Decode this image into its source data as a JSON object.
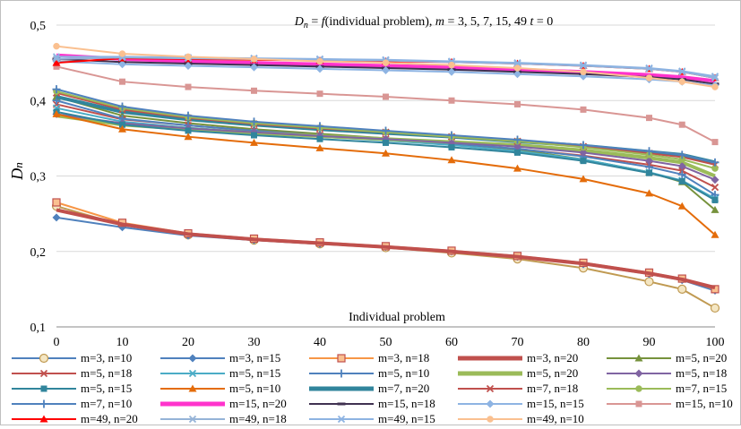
{
  "chart_data": {
    "type": "line",
    "title": "Dn = f(individual problem), m = 3, 5, 7, 15, 49 t = 0",
    "title_parts": {
      "d": "D",
      "d_sub": "n",
      "eq": " = ",
      "f": "f",
      "paren": "(individual problem), ",
      "m": "m",
      "rest": " = 3,  5, 7,  15, 49 ",
      "t": "t",
      "t_rest": " = 0"
    },
    "xlabel": "Individual problem",
    "ylabel": "Dn",
    "ylabel_parts": {
      "main": "D",
      "sub": "n"
    },
    "xlim": [
      0,
      100
    ],
    "ylim": [
      0.1,
      0.5
    ],
    "x_ticks": [
      "0",
      "10",
      "20",
      "30",
      "40",
      "50",
      "60",
      "70",
      "80",
      "90",
      "100"
    ],
    "y_ticks": [
      "0,1",
      "0,2",
      "0,3",
      "0,4",
      "0,5"
    ],
    "grid": "horizontal",
    "legend_position": "bottom",
    "x": [
      0,
      10,
      20,
      30,
      40,
      50,
      60,
      70,
      80,
      90,
      95,
      100
    ],
    "series": [
      {
        "name": "m=3, n=10",
        "color": "#c09a52",
        "marker": "circle-open",
        "values": [
          0.26,
          0.235,
          0.222,
          0.215,
          0.21,
          0.205,
          0.198,
          0.19,
          0.178,
          0.16,
          0.15,
          0.125
        ]
      },
      {
        "name": "m=3, n=15",
        "color": "#4f81bd",
        "marker": "diamond",
        "values": [
          0.245,
          0.232,
          0.221,
          0.215,
          0.21,
          0.206,
          0.2,
          0.193,
          0.183,
          0.17,
          0.162,
          0.148
        ]
      },
      {
        "name": "m=3, n=18",
        "color": "#f79646",
        "marker": "square-open",
        "values": [
          0.265,
          0.238,
          0.224,
          0.217,
          0.212,
          0.207,
          0.201,
          0.194,
          0.185,
          0.172,
          0.164,
          0.15
        ]
      },
      {
        "name": "m=3, n=20",
        "color": "#c0504d",
        "marker": "none",
        "values": [
          0.255,
          0.236,
          0.223,
          0.216,
          0.211,
          0.206,
          0.2,
          0.193,
          0.184,
          0.171,
          0.163,
          0.152
        ]
      },
      {
        "name": "m=5, n=20",
        "color": "#76923c",
        "marker": "triangle",
        "values": [
          0.405,
          0.38,
          0.37,
          0.362,
          0.356,
          0.35,
          0.343,
          0.335,
          0.322,
          0.305,
          0.292,
          0.255
        ]
      },
      {
        "name": "m=5, n=18",
        "color": "#c0504d",
        "marker": "x",
        "values": [
          0.395,
          0.375,
          0.367,
          0.36,
          0.354,
          0.349,
          0.343,
          0.336,
          0.327,
          0.315,
          0.307,
          0.285
        ]
      },
      {
        "name": "m=5, n=15",
        "color": "#4bacc6",
        "marker": "x",
        "values": [
          0.39,
          0.372,
          0.364,
          0.358,
          0.352,
          0.347,
          0.341,
          0.333,
          0.322,
          0.305,
          0.294,
          0.27
        ]
      },
      {
        "name": "m=5, n=10",
        "color": "#4f81bd",
        "marker": "plus",
        "values": [
          0.4,
          0.376,
          0.367,
          0.36,
          0.354,
          0.349,
          0.343,
          0.336,
          0.326,
          0.312,
          0.302,
          0.275
        ]
      },
      {
        "name": "m=5, n=20",
        "color": "#9bbb59",
        "marker": "none",
        "values": [
          0.38,
          0.368,
          0.362,
          0.357,
          0.353,
          0.349,
          0.345,
          0.341,
          0.334,
          0.324,
          0.318,
          0.3
        ]
      },
      {
        "name": "m=5, n=18",
        "color": "#8064a2",
        "marker": "diamond",
        "values": [
          0.382,
          0.37,
          0.363,
          0.358,
          0.353,
          0.349,
          0.344,
          0.339,
          0.331,
          0.32,
          0.313,
          0.295
        ]
      },
      {
        "name": "m=5, n=15",
        "color": "#31859c",
        "marker": "square",
        "values": [
          0.385,
          0.368,
          0.36,
          0.354,
          0.349,
          0.344,
          0.338,
          0.331,
          0.32,
          0.304,
          0.293,
          0.268
        ]
      },
      {
        "name": "m=5, n=10",
        "color": "#e46c0a",
        "marker": "triangle",
        "values": [
          0.382,
          0.362,
          0.352,
          0.344,
          0.337,
          0.33,
          0.321,
          0.31,
          0.296,
          0.277,
          0.26,
          0.222
        ]
      },
      {
        "name": "m=7, n=20",
        "color": "#31859c",
        "marker": "none",
        "values": [
          0.405,
          0.385,
          0.375,
          0.368,
          0.362,
          0.357,
          0.352,
          0.346,
          0.34,
          0.332,
          0.328,
          0.318
        ]
      },
      {
        "name": "m=7, n=18",
        "color": "#c0504d",
        "marker": "x",
        "values": [
          0.41,
          0.388,
          0.377,
          0.369,
          0.363,
          0.358,
          0.352,
          0.346,
          0.339,
          0.33,
          0.325,
          0.315
        ]
      },
      {
        "name": "m=7, n=15",
        "color": "#9bbb59",
        "marker": "circle",
        "values": [
          0.412,
          0.39,
          0.378,
          0.37,
          0.364,
          0.358,
          0.352,
          0.346,
          0.338,
          0.328,
          0.322,
          0.31
        ]
      },
      {
        "name": "m=7, n=10",
        "color": "#4f81bd",
        "marker": "plus",
        "values": [
          0.415,
          0.392,
          0.38,
          0.372,
          0.366,
          0.36,
          0.354,
          0.348,
          0.341,
          0.333,
          0.328,
          0.318
        ]
      },
      {
        "name": "m=15, n=20",
        "color": "#ff33cc",
        "marker": "none",
        "values": [
          0.46,
          0.455,
          0.452,
          0.45,
          0.448,
          0.446,
          0.444,
          0.441,
          0.438,
          0.434,
          0.431,
          0.426
        ]
      },
      {
        "name": "m=15, n=18",
        "color": "#403151",
        "marker": "dash",
        "values": [
          0.455,
          0.451,
          0.449,
          0.447,
          0.445,
          0.443,
          0.441,
          0.438,
          0.435,
          0.431,
          0.428,
          0.422
        ]
      },
      {
        "name": "m=15, n=15",
        "color": "#8eb4e3",
        "marker": "diamond",
        "values": [
          0.452,
          0.448,
          0.446,
          0.444,
          0.442,
          0.44,
          0.438,
          0.435,
          0.432,
          0.428,
          0.425,
          0.42
        ]
      },
      {
        "name": "m=15, n=10",
        "color": "#d99694",
        "marker": "square",
        "values": [
          0.445,
          0.425,
          0.418,
          0.413,
          0.409,
          0.405,
          0.4,
          0.395,
          0.388,
          0.377,
          0.368,
          0.345
        ]
      },
      {
        "name": "m=49, n=20",
        "color": "#ff0000",
        "marker": "triangle",
        "values": [
          0.45,
          0.456,
          0.455,
          0.454,
          0.453,
          0.452,
          0.451,
          0.449,
          0.446,
          0.442,
          0.438,
          0.43
        ]
      },
      {
        "name": "m=49, n=18",
        "color": "#95b3d7",
        "marker": "x",
        "values": [
          0.455,
          0.457,
          0.456,
          0.455,
          0.454,
          0.453,
          0.451,
          0.449,
          0.446,
          0.442,
          0.438,
          0.43
        ]
      },
      {
        "name": "m=49, n=15",
        "color": "#8db3e2",
        "marker": "x",
        "values": [
          0.458,
          0.458,
          0.457,
          0.456,
          0.455,
          0.454,
          0.452,
          0.45,
          0.447,
          0.443,
          0.439,
          0.432
        ]
      },
      {
        "name": "m=49, n=10",
        "color": "#fac090",
        "marker": "circle",
        "values": [
          0.472,
          0.462,
          0.458,
          0.455,
          0.452,
          0.45,
          0.447,
          0.443,
          0.438,
          0.43,
          0.425,
          0.418
        ]
      }
    ]
  }
}
